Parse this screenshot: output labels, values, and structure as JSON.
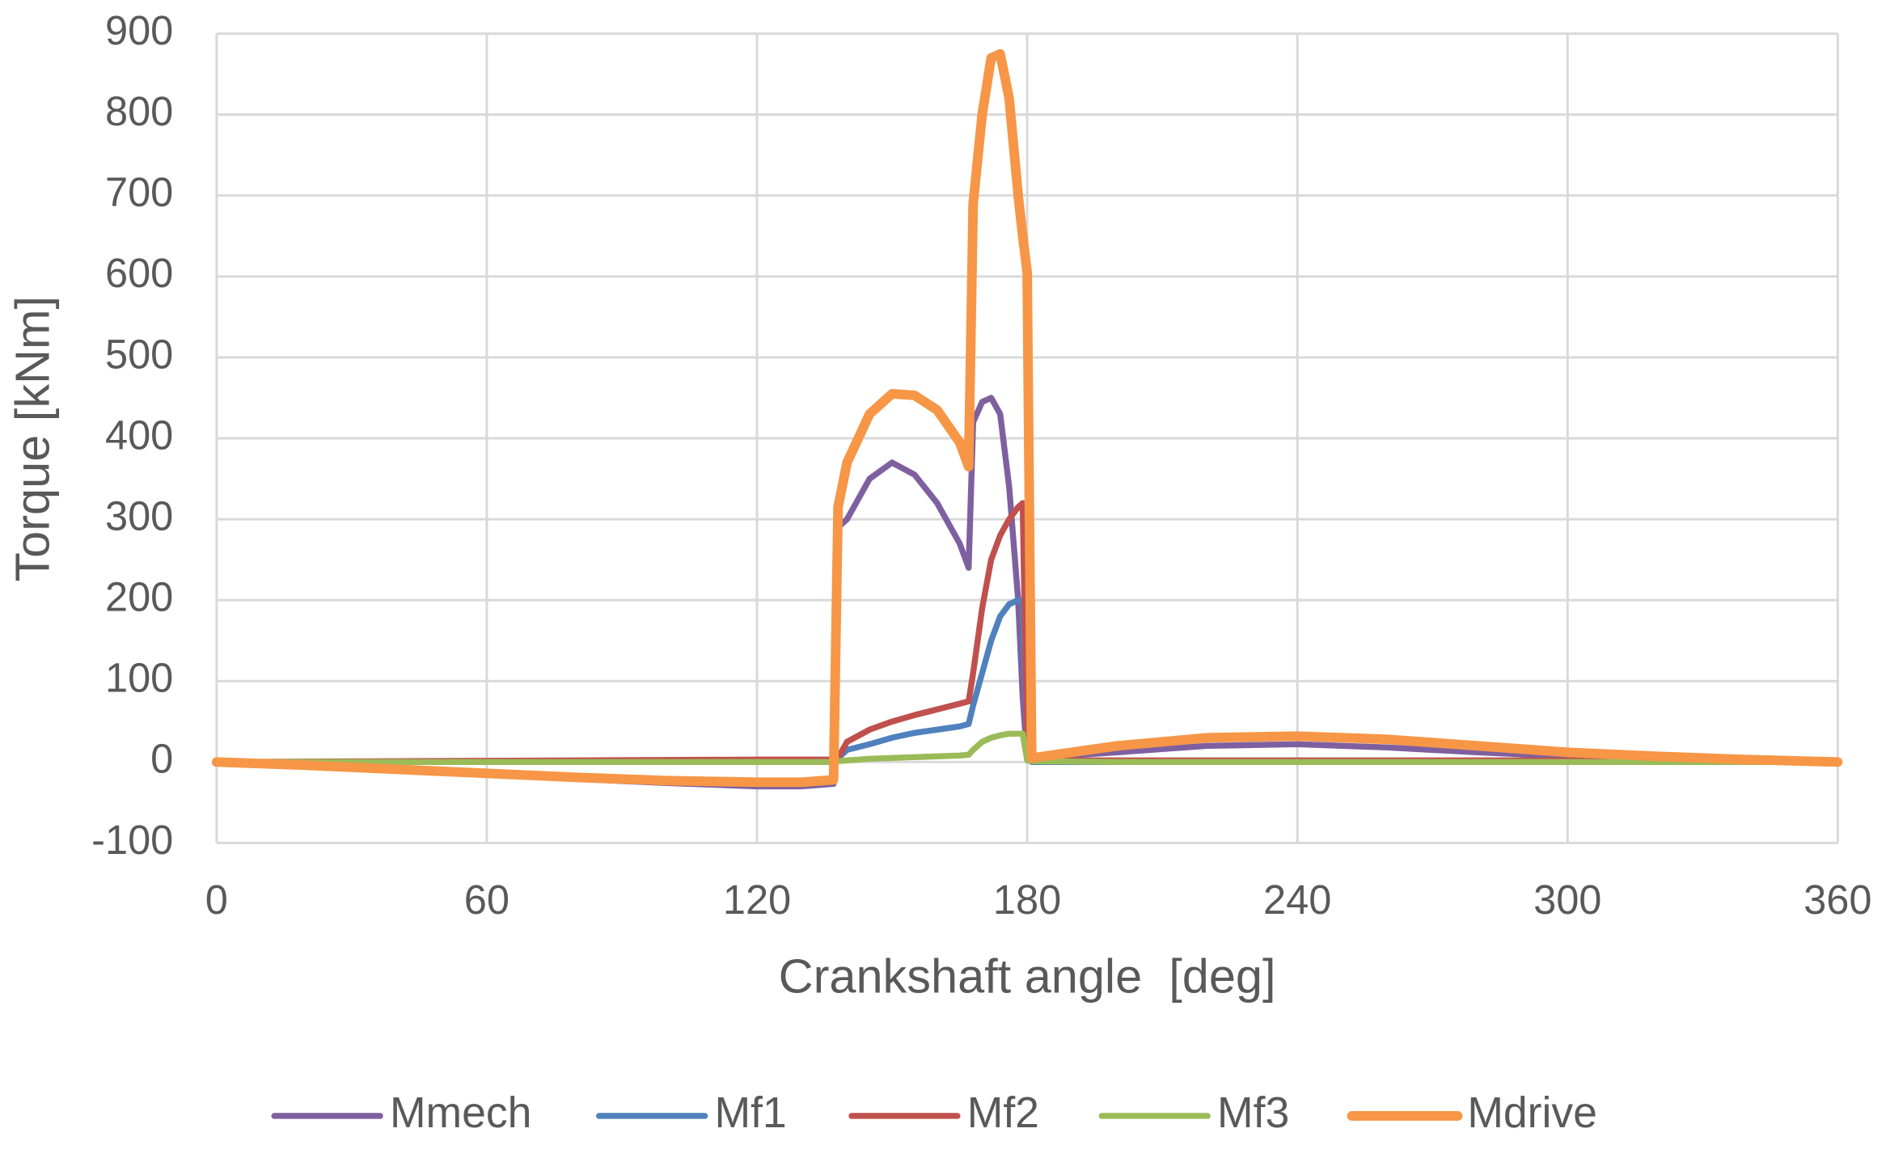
{
  "chart_data": {
    "type": "line",
    "x_label": "Crankshaft angle  [deg]",
    "y_label": "Torque [kNm]",
    "x": [
      0,
      20,
      40,
      60,
      80,
      100,
      120,
      130,
      137,
      138,
      140,
      145,
      150,
      155,
      160,
      165,
      167,
      168,
      170,
      172,
      174,
      176,
      178,
      179,
      180,
      181,
      200,
      220,
      240,
      260,
      280,
      300,
      320,
      340,
      360
    ],
    "series": [
      {
        "name": "Mmech",
        "color": "#7e60a0",
        "width": 5,
        "values": [
          0,
          -4,
          -9,
          -15,
          -21,
          -26,
          -30,
          -30,
          -27,
          290,
          300,
          350,
          370,
          355,
          320,
          270,
          240,
          420,
          445,
          450,
          430,
          340,
          200,
          80,
          5,
          5,
          12,
          20,
          22,
          18,
          12,
          7,
          4,
          2,
          0
        ]
      },
      {
        "name": "Mf1",
        "color": "#4f81bd",
        "width": 5,
        "values": [
          0,
          0,
          0,
          0,
          0,
          0,
          0,
          0,
          0,
          5,
          15,
          22,
          30,
          36,
          40,
          44,
          47,
          70,
          110,
          150,
          180,
          195,
          200,
          200,
          5,
          0,
          0,
          0,
          0,
          0,
          0,
          0,
          0,
          0,
          0
        ]
      },
      {
        "name": "Mf2",
        "color": "#c0504d",
        "width": 5,
        "values": [
          0,
          0.5,
          1,
          1.5,
          2,
          2.5,
          3,
          3,
          3,
          5,
          25,
          40,
          50,
          58,
          65,
          72,
          75,
          110,
          190,
          250,
          280,
          300,
          315,
          320,
          5,
          2,
          2,
          2,
          2,
          2,
          2,
          2,
          2,
          1,
          0
        ]
      },
      {
        "name": "Mf3",
        "color": "#9bbb59",
        "width": 5,
        "values": [
          0,
          0,
          0,
          0,
          0,
          0,
          0,
          0,
          0,
          1,
          2,
          4,
          5,
          6,
          7,
          8,
          9,
          15,
          25,
          30,
          33,
          35,
          35,
          35,
          2,
          1,
          0,
          0,
          0,
          0,
          0,
          0,
          0,
          0,
          0
        ]
      },
      {
        "name": "Mdrive",
        "color": "#f79646",
        "width": 8,
        "values": [
          0,
          -4,
          -9,
          -14,
          -19,
          -23,
          -25,
          -25,
          -22,
          315,
          370,
          430,
          455,
          453,
          435,
          395,
          365,
          690,
          800,
          870,
          875,
          820,
          700,
          650,
          605,
          5,
          20,
          30,
          32,
          28,
          20,
          12,
          7,
          3,
          0
        ]
      }
    ],
    "xlim": [
      0,
      360
    ],
    "xticks": [
      0,
      60,
      120,
      180,
      240,
      300,
      360
    ],
    "ylim": [
      -100,
      900
    ],
    "yticks": [
      -100,
      0,
      100,
      200,
      300,
      400,
      500,
      600,
      700,
      800,
      900
    ],
    "grid": true,
    "legend": "bottom"
  }
}
